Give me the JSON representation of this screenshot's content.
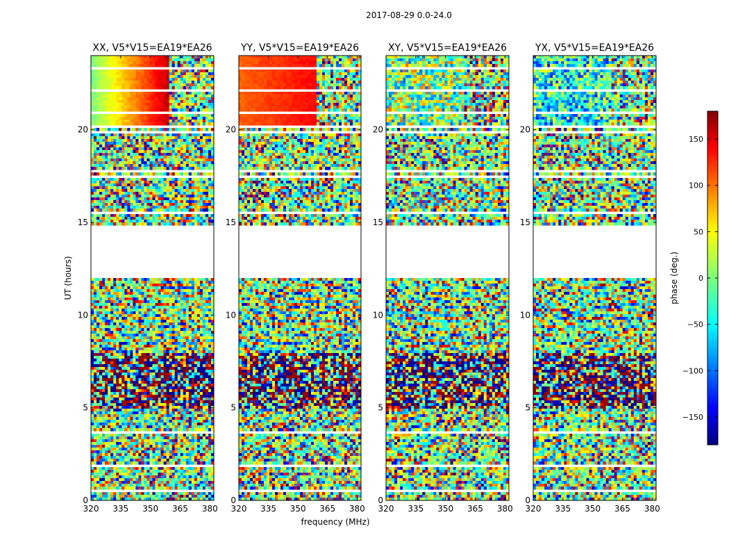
{
  "chart_data": {
    "type": "heatmap",
    "title": "2017-08-29 0.0-24.0",
    "xlabel": "frequency (MHz)",
    "ylabel": "UT (hours)",
    "xlim": [
      320,
      382
    ],
    "ylim": [
      0,
      24
    ],
    "xticks": [
      "320",
      "335",
      "350",
      "365",
      "380"
    ],
    "yticks": [
      "0",
      "5",
      "10",
      "15",
      "20"
    ],
    "panels": [
      {
        "title": "XX, V5*V15=EA19*EA26",
        "scheme": "ramp_green_to_red"
      },
      {
        "title": "YY, V5*V15=EA19*EA26",
        "scheme": "ramp_orange_to_red"
      },
      {
        "title": "XY, V5*V15=EA19*EA26",
        "scheme": "noise_green"
      },
      {
        "title": "YX, V5*V15=EA19*EA26",
        "scheme": "noise_cyan"
      }
    ],
    "gaps_ut": [
      [
        0.45,
        0.55
      ],
      [
        1.8,
        1.9
      ],
      [
        2.05,
        2.1
      ],
      [
        3.55,
        3.7
      ],
      [
        8.95,
        9.05
      ],
      [
        9.3,
        9.35
      ],
      [
        11.95,
        14.85
      ],
      [
        15.5,
        15.6
      ],
      [
        17.4,
        17.5
      ],
      [
        17.7,
        17.85
      ],
      [
        19.85,
        19.95
      ],
      [
        20.15,
        20.25
      ],
      [
        20.8,
        20.95
      ],
      [
        22.1,
        22.2
      ],
      [
        22.9,
        22.98
      ],
      [
        23.3,
        23.35
      ]
    ],
    "colorbar": {
      "label": "phase (deg.)",
      "range": [
        -180,
        180
      ],
      "ticks": [
        {
          "value": 150,
          "label": "150"
        },
        {
          "value": 100,
          "label": "100"
        },
        {
          "value": 50,
          "label": "50"
        },
        {
          "value": 0,
          "label": "0"
        },
        {
          "value": -50,
          "label": "−50"
        },
        {
          "value": -100,
          "label": "−100"
        },
        {
          "value": -150,
          "label": "−150"
        }
      ]
    }
  }
}
